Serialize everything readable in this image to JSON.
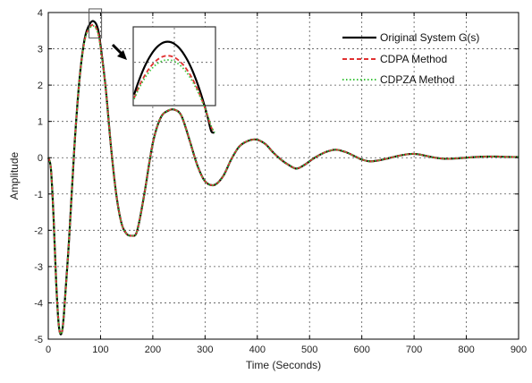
{
  "chart_data": {
    "type": "line",
    "xlabel": "Time (Seconds)",
    "ylabel": "Amplitude",
    "xlim": [
      0,
      900
    ],
    "ylim": [
      -5,
      4
    ],
    "xticks": [
      0,
      100,
      200,
      300,
      400,
      500,
      600,
      700,
      800,
      900
    ],
    "yticks": [
      -5,
      -4,
      -3,
      -2,
      -1,
      0,
      1,
      2,
      3,
      4
    ],
    "grid": true,
    "legend_position": "top-right",
    "series": [
      {
        "name": "Original System G(s)",
        "color": "#000000",
        "style": "solid",
        "x": [
          0,
          5,
          10,
          15,
          20,
          25,
          30,
          40,
          50,
          60,
          70,
          80,
          88,
          95,
          100,
          110,
          120,
          130,
          140,
          150,
          160,
          168,
          175,
          185,
          200,
          215,
          230,
          242,
          255,
          270,
          285,
          300,
          318,
          335,
          350,
          365,
          380,
          398,
          415,
          430,
          445,
          460,
          475,
          490,
          510,
          530,
          550,
          570,
          585,
          600,
          615,
          630,
          650,
          670,
          690,
          705,
          720,
          740,
          760,
          780,
          800,
          820,
          840,
          860,
          880,
          900
        ],
        "y": [
          0,
          -0.3,
          -1.6,
          -3.4,
          -4.6,
          -4.85,
          -4.3,
          -2.2,
          0.3,
          2.2,
          3.3,
          3.7,
          3.75,
          3.55,
          3.1,
          1.9,
          0.3,
          -1.0,
          -1.8,
          -2.1,
          -2.15,
          -2.1,
          -1.7,
          -0.9,
          0.4,
          1.1,
          1.3,
          1.32,
          1.15,
          0.5,
          -0.2,
          -0.65,
          -0.75,
          -0.5,
          -0.05,
          0.3,
          0.45,
          0.5,
          0.38,
          0.15,
          -0.05,
          -0.2,
          -0.3,
          -0.2,
          0.0,
          0.15,
          0.22,
          0.15,
          0.05,
          -0.05,
          -0.1,
          -0.08,
          -0.02,
          0.05,
          0.1,
          0.1,
          0.06,
          0.0,
          -0.03,
          -0.02,
          0.0,
          0.02,
          0.03,
          0.03,
          0.02,
          0.02
        ]
      },
      {
        "name": "CDPA Method",
        "color": "#e03030",
        "style": "dashed",
        "x": [
          0,
          5,
          10,
          15,
          20,
          25,
          30,
          40,
          50,
          60,
          70,
          80,
          88,
          95,
          100,
          110,
          120,
          130,
          140,
          150,
          160,
          168,
          175,
          185,
          200,
          215,
          230,
          242,
          255,
          270,
          285,
          300,
          318,
          335,
          350,
          365,
          380,
          398,
          415,
          430,
          445,
          460,
          475,
          490,
          510,
          530,
          550,
          570,
          585,
          600,
          615,
          630,
          650,
          670,
          690,
          705,
          720,
          740,
          760,
          780,
          800,
          820,
          840,
          860,
          880,
          900
        ],
        "y": [
          0,
          -0.3,
          -1.6,
          -3.4,
          -4.6,
          -4.85,
          -4.3,
          -2.2,
          0.3,
          2.2,
          3.25,
          3.6,
          3.65,
          3.45,
          3.05,
          1.9,
          0.3,
          -1.0,
          -1.8,
          -2.1,
          -2.15,
          -2.1,
          -1.7,
          -0.9,
          0.4,
          1.1,
          1.3,
          1.32,
          1.15,
          0.5,
          -0.2,
          -0.65,
          -0.75,
          -0.5,
          -0.05,
          0.3,
          0.45,
          0.5,
          0.38,
          0.15,
          -0.05,
          -0.2,
          -0.3,
          -0.2,
          0.0,
          0.15,
          0.22,
          0.15,
          0.05,
          -0.05,
          -0.1,
          -0.08,
          -0.02,
          0.05,
          0.1,
          0.1,
          0.06,
          0.0,
          -0.03,
          -0.02,
          0.0,
          0.02,
          0.03,
          0.03,
          0.02,
          0.02
        ]
      },
      {
        "name": "CDPZA Method",
        "color": "#3cc43c",
        "style": "dotted",
        "x": [
          0,
          5,
          10,
          15,
          20,
          25,
          30,
          40,
          50,
          60,
          70,
          80,
          88,
          95,
          100,
          110,
          120,
          130,
          140,
          150,
          160,
          168,
          175,
          185,
          200,
          215,
          230,
          242,
          255,
          270,
          285,
          300,
          318,
          335,
          350,
          365,
          380,
          398,
          415,
          430,
          445,
          460,
          475,
          490,
          510,
          530,
          550,
          570,
          585,
          600,
          615,
          630,
          650,
          670,
          690,
          705,
          720,
          740,
          760,
          780,
          800,
          820,
          840,
          860,
          880,
          900
        ],
        "y": [
          0,
          -0.3,
          -1.6,
          -3.4,
          -4.6,
          -4.85,
          -4.3,
          -2.2,
          0.3,
          2.2,
          3.25,
          3.58,
          3.62,
          3.42,
          3.03,
          1.9,
          0.3,
          -1.0,
          -1.8,
          -2.1,
          -2.15,
          -2.1,
          -1.7,
          -0.9,
          0.4,
          1.1,
          1.3,
          1.32,
          1.15,
          0.5,
          -0.2,
          -0.65,
          -0.75,
          -0.5,
          -0.05,
          0.3,
          0.45,
          0.5,
          0.38,
          0.15,
          -0.05,
          -0.2,
          -0.3,
          -0.2,
          0.0,
          0.15,
          0.22,
          0.15,
          0.05,
          -0.05,
          -0.1,
          -0.08,
          -0.02,
          0.05,
          0.1,
          0.1,
          0.06,
          0.0,
          -0.03,
          -0.02,
          0.0,
          0.02,
          0.03,
          0.03,
          0.02,
          0.02
        ]
      }
    ],
    "inset": {
      "shows": "zoom of the first peak",
      "x_range": [
        78,
        102
      ],
      "y_range": [
        3.3,
        3.85
      ]
    }
  }
}
